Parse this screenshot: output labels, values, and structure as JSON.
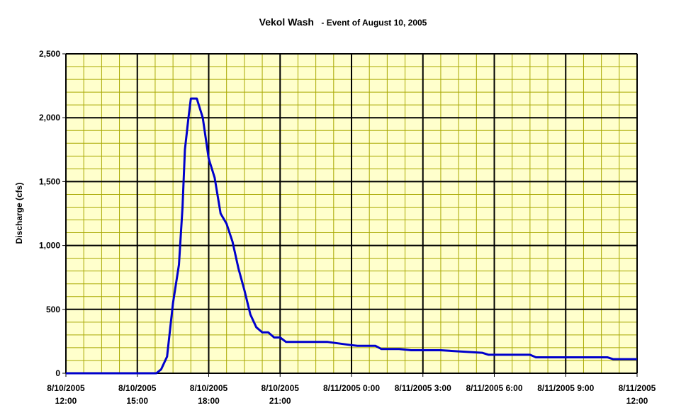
{
  "colors": {
    "background": "#ffffff",
    "plot_background": "#ffffcc",
    "minor_grid": "#a8a800",
    "major_grid": "#000000",
    "series": "#0000cc"
  },
  "chart_data": {
    "type": "line",
    "title": "Vekol Wash",
    "subtitle": "- Event of August 10, 2005",
    "xlabel": "",
    "ylabel": "Discharge (cfs)",
    "x_unit": "hours since 8/10/2005 12:00",
    "xlim": [
      0,
      24
    ],
    "ylim": [
      0,
      2500
    ],
    "y_major_step": 500,
    "y_minor_step": 100,
    "x_major_step": 3,
    "x_minor_step": 0.75,
    "grid": true,
    "legend": "none",
    "x_tick_labels": [
      {
        "x": 0,
        "line1": "8/10/2005",
        "line2": "12:00"
      },
      {
        "x": 3,
        "line1": "8/10/2005",
        "line2": "15:00"
      },
      {
        "x": 6,
        "line1": "8/10/2005",
        "line2": "18:00"
      },
      {
        "x": 9,
        "line1": "8/10/2005",
        "line2": "21:00"
      },
      {
        "x": 12,
        "line1": "8/11/2005 0:00",
        "line2": ""
      },
      {
        "x": 15,
        "line1": "8/11/2005 3:00",
        "line2": ""
      },
      {
        "x": 18,
        "line1": "8/11/2005 6:00",
        "line2": ""
      },
      {
        "x": 21,
        "line1": "8/11/2005 9:00",
        "line2": ""
      },
      {
        "x": 24,
        "line1": "8/11/2005",
        "line2": "12:00"
      }
    ],
    "y_tick_labels": [
      {
        "y": 0,
        "label": "0"
      },
      {
        "y": 500,
        "label": "500"
      },
      {
        "y": 1000,
        "label": "1,000"
      },
      {
        "y": 1500,
        "label": "1,500"
      },
      {
        "y": 2000,
        "label": "2,000"
      },
      {
        "y": 2500,
        "label": "2,500"
      }
    ],
    "series": [
      {
        "name": "",
        "x": [
          0,
          3.8,
          4.0,
          4.25,
          4.5,
          4.75,
          4.9,
          5.0,
          5.15,
          5.25,
          5.5,
          5.75,
          6.0,
          6.25,
          6.5,
          6.75,
          7.0,
          7.25,
          7.5,
          7.75,
          8.0,
          8.25,
          8.5,
          8.75,
          9.0,
          9.25,
          10.0,
          11.0,
          12.0,
          12.25,
          13.0,
          13.25,
          14.0,
          14.5,
          15.0,
          15.75,
          17.5,
          17.75,
          19.5,
          19.75,
          22.75,
          23.0,
          24.0
        ],
        "y": [
          0,
          0,
          30,
          130,
          550,
          850,
          1300,
          1750,
          2000,
          2150,
          2150,
          2000,
          1680,
          1530,
          1250,
          1170,
          1030,
          820,
          650,
          460,
          360,
          320,
          320,
          280,
          280,
          245,
          245,
          245,
          220,
          215,
          215,
          190,
          190,
          180,
          180,
          180,
          160,
          145,
          145,
          125,
          125,
          110,
          110
        ]
      }
    ]
  }
}
